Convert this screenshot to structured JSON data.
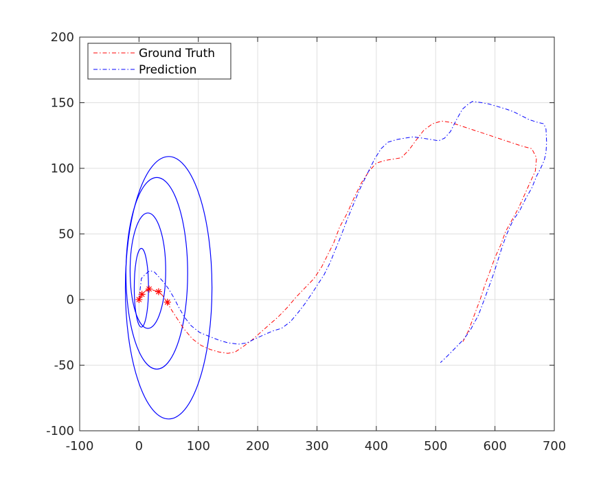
{
  "chart_data": {
    "type": "line",
    "title": "",
    "xlabel": "",
    "ylabel": "",
    "xlim": [
      -100,
      700
    ],
    "ylim": [
      -100,
      200
    ],
    "xticks": [
      -100,
      0,
      100,
      200,
      300,
      400,
      500,
      600,
      700
    ],
    "yticks": [
      -100,
      -50,
      0,
      50,
      100,
      150,
      200
    ],
    "xtick_labels": [
      "-100",
      "0",
      "100",
      "200",
      "300",
      "400",
      "500",
      "600",
      "700"
    ],
    "ytick_labels": [
      "-100",
      "-50",
      "0",
      "50",
      "100",
      "150",
      "200"
    ],
    "grid": true,
    "legend_position": "top-left",
    "series": [
      {
        "name": "Ground Truth",
        "color": "#ff0000",
        "style": "dash-dot",
        "points": [
          [
            0,
            0
          ],
          [
            5,
            4
          ],
          [
            12,
            7
          ],
          [
            18,
            8
          ],
          [
            25,
            7
          ],
          [
            33,
            6
          ],
          [
            40,
            3
          ],
          [
            47,
            -2
          ],
          [
            55,
            -8
          ],
          [
            65,
            -15
          ],
          [
            75,
            -22
          ],
          [
            90,
            -30
          ],
          [
            105,
            -35
          ],
          [
            120,
            -38
          ],
          [
            135,
            -40
          ],
          [
            150,
            -41
          ],
          [
            162,
            -40
          ],
          [
            175,
            -36
          ],
          [
            190,
            -31
          ],
          [
            205,
            -25
          ],
          [
            220,
            -19
          ],
          [
            235,
            -13
          ],
          [
            250,
            -6
          ],
          [
            265,
            2
          ],
          [
            280,
            9
          ],
          [
            295,
            16
          ],
          [
            308,
            25
          ],
          [
            318,
            34
          ],
          [
            328,
            43
          ],
          [
            338,
            55
          ],
          [
            350,
            65
          ],
          [
            362,
            77
          ],
          [
            375,
            89
          ],
          [
            388,
            98
          ],
          [
            400,
            104
          ],
          [
            415,
            106
          ],
          [
            428,
            107
          ],
          [
            442,
            108
          ],
          [
            455,
            114
          ],
          [
            468,
            122
          ],
          [
            480,
            129
          ],
          [
            495,
            134
          ],
          [
            510,
            136
          ],
          [
            525,
            135
          ],
          [
            545,
            132
          ],
          [
            565,
            129
          ],
          [
            585,
            126
          ],
          [
            605,
            123
          ],
          [
            625,
            120
          ],
          [
            645,
            117
          ],
          [
            662,
            115
          ],
          [
            670,
            108
          ],
          [
            668,
            98
          ],
          [
            660,
            90
          ],
          [
            650,
            80
          ],
          [
            640,
            70
          ],
          [
            628,
            60
          ],
          [
            618,
            52
          ],
          [
            610,
            42
          ],
          [
            600,
            32
          ],
          [
            592,
            22
          ],
          [
            583,
            11
          ],
          [
            575,
            0
          ],
          [
            565,
            -12
          ],
          [
            555,
            -24
          ],
          [
            546,
            -32
          ]
        ]
      },
      {
        "name": "Prediction",
        "color": "#0000ff",
        "style": "dash-dot",
        "points": [
          [
            0,
            0
          ],
          [
            2,
            8
          ],
          [
            4,
            16
          ],
          [
            10,
            19
          ],
          [
            18,
            22
          ],
          [
            26,
            21
          ],
          [
            34,
            17
          ],
          [
            42,
            13
          ],
          [
            50,
            8
          ],
          [
            58,
            2
          ],
          [
            66,
            -5
          ],
          [
            76,
            -13
          ],
          [
            88,
            -20
          ],
          [
            102,
            -25
          ],
          [
            118,
            -28
          ],
          [
            135,
            -31
          ],
          [
            150,
            -33
          ],
          [
            168,
            -34
          ],
          [
            182,
            -33
          ],
          [
            195,
            -30
          ],
          [
            210,
            -27
          ],
          [
            225,
            -24
          ],
          [
            240,
            -22
          ],
          [
            255,
            -17
          ],
          [
            268,
            -10
          ],
          [
            280,
            -3
          ],
          [
            292,
            5
          ],
          [
            302,
            12
          ],
          [
            312,
            19
          ],
          [
            322,
            28
          ],
          [
            330,
            37
          ],
          [
            340,
            48
          ],
          [
            350,
            60
          ],
          [
            360,
            71
          ],
          [
            372,
            84
          ],
          [
            385,
            96
          ],
          [
            397,
            107
          ],
          [
            408,
            115
          ],
          [
            420,
            120
          ],
          [
            435,
            122
          ],
          [
            448,
            123
          ],
          [
            462,
            124
          ],
          [
            478,
            123
          ],
          [
            492,
            122
          ],
          [
            505,
            121
          ],
          [
            515,
            123
          ],
          [
            525,
            128
          ],
          [
            535,
            137
          ],
          [
            545,
            145
          ],
          [
            555,
            149
          ],
          [
            562,
            151
          ],
          [
            578,
            150
          ],
          [
            590,
            149
          ],
          [
            605,
            147
          ],
          [
            620,
            145
          ],
          [
            632,
            143
          ],
          [
            645,
            140
          ],
          [
            658,
            137
          ],
          [
            672,
            135
          ],
          [
            682,
            134
          ],
          [
            686,
            130
          ],
          [
            687,
            120
          ],
          [
            686,
            112
          ],
          [
            683,
            106
          ],
          [
            677,
            100
          ],
          [
            670,
            94
          ],
          [
            662,
            85
          ],
          [
            652,
            77
          ],
          [
            642,
            68
          ],
          [
            630,
            60
          ],
          [
            620,
            50
          ],
          [
            612,
            40
          ],
          [
            605,
            30
          ],
          [
            598,
            20
          ],
          [
            590,
            10
          ],
          [
            582,
            0
          ],
          [
            572,
            -12
          ],
          [
            560,
            -22
          ],
          [
            548,
            -30
          ],
          [
            535,
            -36
          ],
          [
            522,
            -42
          ],
          [
            513,
            -46
          ],
          [
            508,
            -48
          ]
        ]
      }
    ],
    "markers": {
      "symbol": "*",
      "color": "#ff0000",
      "points": [
        [
          0,
          0
        ],
        [
          5,
          4
        ],
        [
          17,
          8
        ],
        [
          33,
          6
        ],
        [
          48,
          -2
        ]
      ]
    },
    "ellipses": {
      "color": "#0000ff",
      "items": [
        {
          "cx": 4,
          "cy": 9,
          "rx": 12,
          "ry": 30
        },
        {
          "cx": 15,
          "cy": 22,
          "rx": 30,
          "ry": 44
        },
        {
          "cx": 30,
          "cy": 20,
          "rx": 52,
          "ry": 73
        },
        {
          "cx": 50,
          "cy": 9,
          "rx": 73,
          "ry": 100
        }
      ]
    }
  },
  "legend": {
    "items": [
      {
        "label": "Ground Truth",
        "color": "#ff0000"
      },
      {
        "label": "Prediction",
        "color": "#0000ff"
      }
    ]
  }
}
